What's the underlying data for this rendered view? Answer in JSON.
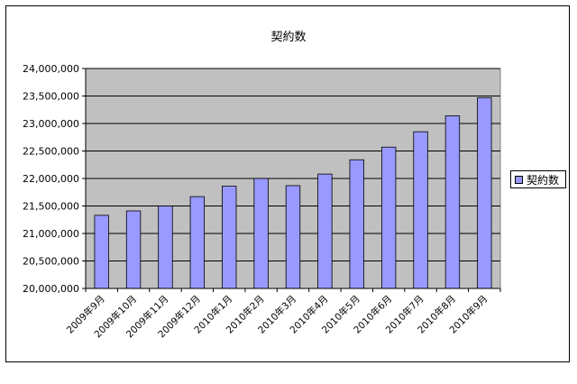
{
  "chart_data": {
    "type": "bar",
    "title": "契約数",
    "xlabel": "",
    "ylabel": "",
    "categories": [
      "2009年9月",
      "2009年10月",
      "2009年11月",
      "2009年12月",
      "2010年1月",
      "2010年2月",
      "2010年3月",
      "2010年4月",
      "2010年5月",
      "2010年6月",
      "2010年7月",
      "2010年8月",
      "2010年9月"
    ],
    "series": [
      {
        "name": "契約数",
        "values": [
          21330000,
          21410000,
          21500000,
          21670000,
          21860000,
          22000000,
          21870000,
          22080000,
          22340000,
          22570000,
          22850000,
          23140000,
          23470000
        ]
      }
    ],
    "ylim": [
      20000000,
      24000000
    ],
    "y_ticks": [
      "20,000,000",
      "20,500,000",
      "21,000,000",
      "21,500,000",
      "22,000,000",
      "22,500,000",
      "23,000,000",
      "23,500,000",
      "24,000,000"
    ],
    "grid": true,
    "legend": "right",
    "colors": {
      "bar": "#9999ff",
      "plot_bg": "#c0c0c0",
      "frame": "#000000"
    }
  }
}
